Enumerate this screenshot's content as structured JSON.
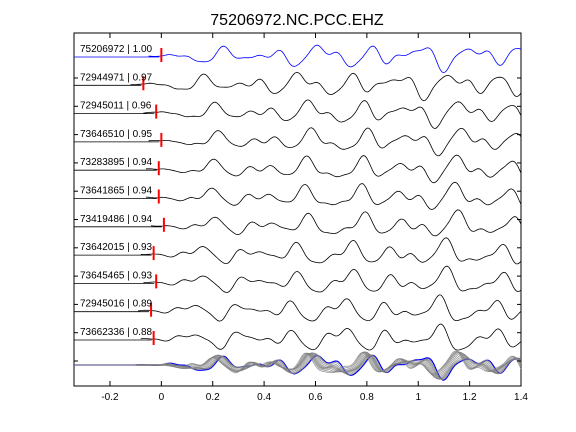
{
  "chart_data": {
    "type": "line",
    "title": "75206972.NC.PCC.EHZ",
    "xlabel": "",
    "ylabel": "",
    "xlim": [
      -0.34,
      1.4
    ],
    "xticks": [
      -0.2,
      0,
      0.2,
      0.4,
      0.6,
      0.8,
      1,
      1.2,
      1.4
    ],
    "xtick_labels": [
      "-0.2",
      "0",
      "0.2",
      "0.4",
      "0.6",
      "0.8",
      "1",
      "1.2",
      "1.4"
    ],
    "grid": false,
    "traces": [
      {
        "label": "75206972 | 1.00",
        "pick_time": 0.0,
        "color": "#0000ff"
      },
      {
        "label": "72944971 | 0.97",
        "pick_time": -0.07,
        "color": "#000000"
      },
      {
        "label": "72945011 | 0.96",
        "pick_time": -0.02,
        "color": "#000000"
      },
      {
        "label": "73646510 | 0.95",
        "pick_time": 0.0,
        "color": "#000000"
      },
      {
        "label": "73283895 | 0.94",
        "pick_time": -0.01,
        "color": "#000000"
      },
      {
        "label": "73641865 | 0.94",
        "pick_time": -0.01,
        "color": "#000000"
      },
      {
        "label": "73419486 | 0.94",
        "pick_time": 0.01,
        "color": "#000000"
      },
      {
        "label": "73642015 | 0.93",
        "pick_time": -0.03,
        "color": "#000000"
      },
      {
        "label": "73645465 | 0.93",
        "pick_time": -0.02,
        "color": "#000000"
      },
      {
        "label": "72945016 | 0.89",
        "pick_time": -0.04,
        "color": "#000000"
      },
      {
        "label": "73662336 | 0.88",
        "pick_time": -0.03,
        "color": "#000000"
      }
    ],
    "stack": {
      "description_color_overlay": "#808080",
      "reference_color": "#0000ff"
    },
    "pick_color": "#ff0000"
  }
}
